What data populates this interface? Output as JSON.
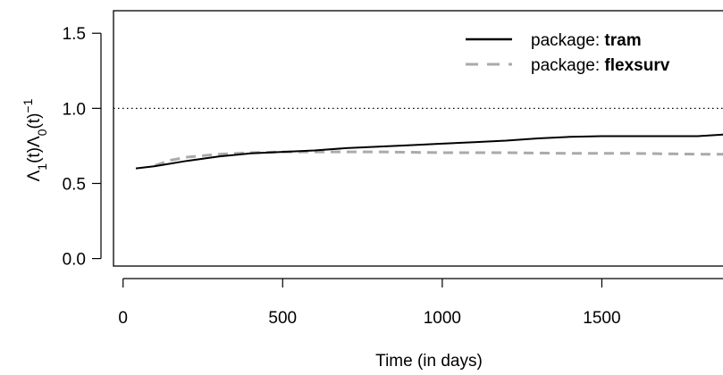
{
  "chart_data": {
    "type": "line",
    "xlabel": "Time (in days)",
    "ylabel": {
      "parts": [
        {
          "text": "Λ",
          "style": "normal"
        },
        {
          "text": "1",
          "style": "sub"
        },
        {
          "text": "(t)Λ",
          "style": "normal"
        },
        {
          "text": "0",
          "style": "sub"
        },
        {
          "text": "(t)",
          "style": "normal"
        },
        {
          "text": "−1",
          "style": "sup"
        }
      ]
    },
    "xlim": [
      -30,
      1930
    ],
    "ylim": [
      -0.05,
      1.65
    ],
    "x_ticks": [
      0,
      500,
      1000,
      1500
    ],
    "x_tick_labels": [
      "0",
      "500",
      "1000",
      "1500"
    ],
    "y_ticks": [
      0.0,
      0.5,
      1.0,
      1.5
    ],
    "y_tick_labels": [
      "0.0",
      "0.5",
      "1.0",
      "1.5"
    ],
    "reference_line": {
      "y": 1.0,
      "style": "dotted",
      "color": "#000000"
    },
    "legend": {
      "position": "top-right",
      "entries": [
        {
          "prefix": "package: ",
          "name": "tram"
        },
        {
          "prefix": "package: ",
          "name": "flexsurv"
        }
      ]
    },
    "series": [
      {
        "name": "tram",
        "color": "#000000",
        "dash": "solid",
        "x": [
          40,
          100,
          200,
          300,
          400,
          500,
          600,
          700,
          800,
          900,
          1000,
          1100,
          1200,
          1300,
          1400,
          1500,
          1600,
          1700,
          1800,
          1880
        ],
        "y": [
          0.6,
          0.615,
          0.65,
          0.68,
          0.7,
          0.71,
          0.72,
          0.735,
          0.745,
          0.755,
          0.765,
          0.775,
          0.785,
          0.8,
          0.81,
          0.815,
          0.815,
          0.815,
          0.815,
          0.825
        ]
      },
      {
        "name": "flexsurv",
        "color": "#aaaaaa",
        "dash": "dashed",
        "x": [
          100,
          150,
          200,
          300,
          400,
          500,
          600,
          800,
          1000,
          1200,
          1400,
          1600,
          1800,
          1930
        ],
        "y": [
          0.62,
          0.655,
          0.675,
          0.695,
          0.705,
          0.71,
          0.71,
          0.71,
          0.705,
          0.705,
          0.7,
          0.7,
          0.695,
          0.695
        ]
      }
    ]
  }
}
